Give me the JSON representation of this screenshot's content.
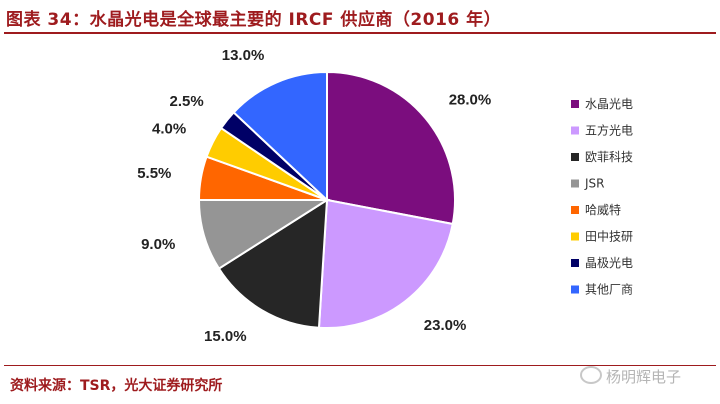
{
  "header": {
    "title": "图表 34：水晶光电是全球最主要的 IRCF 供应商（2016 年）"
  },
  "footer": {
    "source": "资料来源：TSR，光大证券研究所",
    "watermark": "杨明辉电子"
  },
  "chart_data": {
    "type": "pie",
    "title": "",
    "labels": [
      "水晶光电",
      "五方光电",
      "欧菲科技",
      "JSR",
      "哈威特",
      "田中技研",
      "晶极光电",
      "其他厂商"
    ],
    "values": [
      28.0,
      23.0,
      15.0,
      9.0,
      5.5,
      4.0,
      2.5,
      13.0
    ],
    "value_labels": [
      "28.0%",
      "23.0%",
      "15.0%",
      "9.0%",
      "5.5%",
      "4.0%",
      "2.5%",
      "13.0%"
    ],
    "colors": [
      "#7b0d7e",
      "#cc99ff",
      "#262626",
      "#959595",
      "#ff6600",
      "#ffcc00",
      "#000066",
      "#3366ff"
    ],
    "start_angle": "12 o'clock",
    "direction": "clockwise",
    "legend_position": "right"
  }
}
